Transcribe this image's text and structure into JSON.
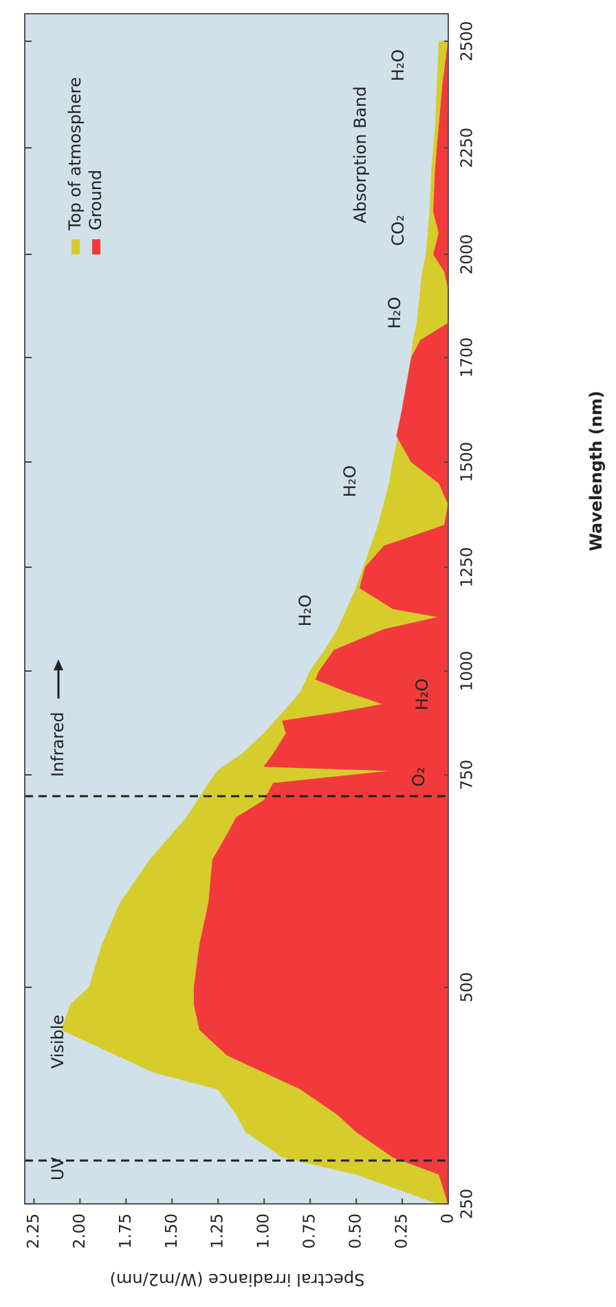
{
  "chart_data": {
    "type": "area",
    "x_label": "Wavelength (nm)",
    "y_label": "Spectral irradiance (W/m2/nm)",
    "x": [
      250,
      280,
      300,
      330,
      350,
      380,
      400,
      420,
      450,
      480,
      500,
      550,
      600,
      650,
      680,
      700,
      720,
      740,
      760,
      770,
      800,
      850,
      880,
      900,
      920,
      950,
      980,
      1000,
      1050,
      1100,
      1130,
      1150,
      1200,
      1250,
      1300,
      1350,
      1400,
      1450,
      1500,
      1550,
      1600,
      1700,
      1750,
      1800,
      1900,
      1950,
      2000,
      2050,
      2100,
      2200,
      2300,
      2400,
      2500
    ],
    "series": [
      {
        "name": "Top of atmosphere",
        "color": "#d6cc2c",
        "values": [
          0.05,
          0.5,
          0.9,
          1.1,
          1.15,
          1.25,
          1.6,
          1.8,
          2.1,
          2.05,
          1.95,
          1.88,
          1.78,
          1.62,
          1.5,
          1.42,
          1.36,
          1.3,
          1.25,
          1.22,
          1.12,
          1.0,
          0.94,
          0.9,
          0.86,
          0.8,
          0.77,
          0.75,
          0.67,
          0.6,
          0.57,
          0.55,
          0.5,
          0.46,
          0.42,
          0.38,
          0.35,
          0.32,
          0.3,
          0.27,
          0.25,
          0.2,
          0.19,
          0.17,
          0.15,
          0.14,
          0.12,
          0.11,
          0.1,
          0.09,
          0.07,
          0.06,
          0.05
        ]
      },
      {
        "name": "Ground",
        "color": "#f23a3c",
        "values": [
          0,
          0.05,
          0.3,
          0.5,
          0.6,
          0.8,
          1.0,
          1.2,
          1.35,
          1.38,
          1.38,
          1.35,
          1.3,
          1.28,
          1.2,
          1.15,
          1.0,
          0.95,
          0.3,
          1.0,
          0.95,
          0.88,
          0.9,
          0.6,
          0.35,
          0.55,
          0.72,
          0.7,
          0.62,
          0.35,
          0.05,
          0.3,
          0.48,
          0.45,
          0.35,
          0.02,
          0,
          0.05,
          0.2,
          0.28,
          0.25,
          0.2,
          0.15,
          0,
          0,
          0.02,
          0.08,
          0.05,
          0.08,
          0.07,
          0.05,
          0.03,
          0
        ]
      }
    ],
    "xlim": [
      250,
      2565
    ],
    "xticks": [
      250,
      500,
      750,
      1000,
      1250,
      1500,
      1700,
      2000,
      2250,
      2500
    ],
    "ylim": [
      0,
      2.3
    ],
    "yticks": [
      0,
      {
        "value": 0.25,
        "label": "0.25"
      },
      {
        "value": 0.5,
        "label": "0.50"
      },
      {
        "value": 0.75,
        "label": "0.75"
      },
      {
        "value": 1,
        "label": "1.00"
      },
      {
        "value": 1.25,
        "label": "1.25"
      },
      {
        "value": 1.5,
        "label": "1.50"
      },
      {
        "value": 1.75,
        "label": "1.75"
      },
      {
        "value": 2,
        "label": "2.00"
      },
      {
        "value": 2.25,
        "label": "2.25"
      }
    ],
    "background": "#d0e1ea",
    "annotations": [
      "UV",
      "Visible",
      "Infrared",
      "O₂",
      "H₂O",
      "H₂O",
      "H₂O",
      "H₂O",
      "CO₂",
      "Absorption Band",
      "H₂O"
    ]
  }
}
